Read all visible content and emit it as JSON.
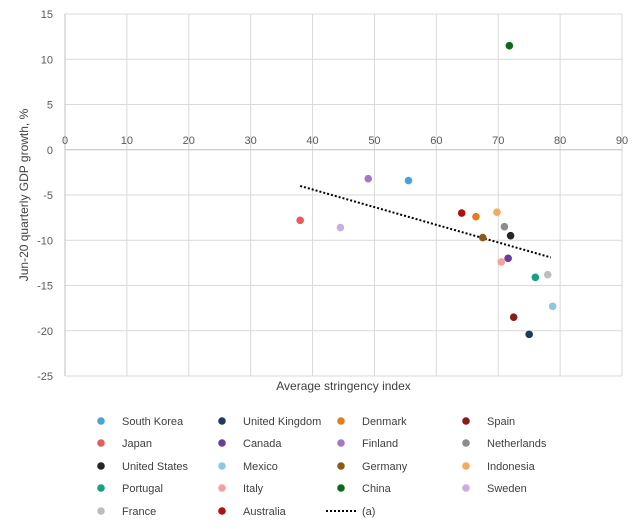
{
  "chart_data": {
    "type": "scatter",
    "title": "",
    "xlabel": "Average stringency index",
    "ylabel": "Jun-20 quarterly GDP growth, %",
    "xlim": [
      0,
      90
    ],
    "ylim": [
      -25,
      15
    ],
    "x_ticks": [
      0,
      10,
      20,
      30,
      40,
      50,
      60,
      70,
      80,
      90
    ],
    "y_ticks": [
      15,
      10,
      5,
      0,
      -5,
      -10,
      -15,
      -20,
      -25
    ],
    "grid": true,
    "legend_position": "bottom",
    "series": [
      {
        "name": "South Korea",
        "color": "#4aa3d8",
        "x": 55.5,
        "y": -3.4
      },
      {
        "name": "United Kingdom",
        "color": "#1f3a5a",
        "x": 75.0,
        "y": -20.4
      },
      {
        "name": "Denmark",
        "color": "#e57a1e",
        "x": 66.4,
        "y": -7.4
      },
      {
        "name": "Spain",
        "color": "#8b1a1a",
        "x": 72.5,
        "y": -18.5
      },
      {
        "name": "Japan",
        "color": "#e65c5c",
        "x": 38.0,
        "y": -7.8
      },
      {
        "name": "Canada",
        "color": "#6a3d9a",
        "x": 71.6,
        "y": -12.0
      },
      {
        "name": "Finland",
        "color": "#a678c4",
        "x": 49.0,
        "y": -3.2
      },
      {
        "name": "Netherlands",
        "color": "#8c8c8c",
        "x": 71.0,
        "y": -8.5
      },
      {
        "name": "United States",
        "color": "#262626",
        "x": 72.0,
        "y": -9.5
      },
      {
        "name": "Mexico",
        "color": "#8fc7e0",
        "x": 78.8,
        "y": -17.3
      },
      {
        "name": "Germany",
        "color": "#8b5a14",
        "x": 67.5,
        "y": -9.7
      },
      {
        "name": "Indonesia",
        "color": "#f5a95a",
        "x": 69.8,
        "y": -6.9
      },
      {
        "name": "Portugal",
        "color": "#17a086",
        "x": 76.0,
        "y": -14.1
      },
      {
        "name": "Italy",
        "color": "#f2a1a1",
        "x": 70.5,
        "y": -12.4
      },
      {
        "name": "China",
        "color": "#0b6b1c",
        "x": 71.8,
        "y": 11.5
      },
      {
        "name": "Sweden",
        "color": "#c9aee0",
        "x": 44.5,
        "y": -8.6
      },
      {
        "name": "France",
        "color": "#bdbdbd",
        "x": 78.0,
        "y": -13.8
      },
      {
        "name": "Australia",
        "color": "#b01010",
        "x": 64.1,
        "y": -7.0
      }
    ],
    "trendline": {
      "name": "(a)",
      "style": "dotted",
      "color": "#000000",
      "x": [
        38,
        78.5
      ],
      "y": [
        -4.0,
        -11.9
      ]
    }
  }
}
